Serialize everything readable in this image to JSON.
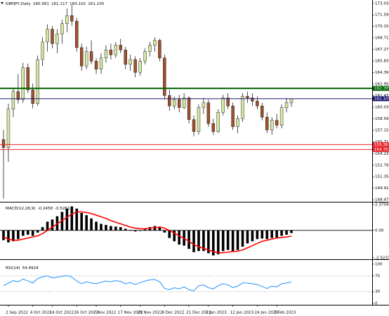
{
  "chart_data": [
    {
      "type": "candlestick",
      "symbol": "GBPJPY,Daily",
      "up_color": "#d3e6a3",
      "down_color": "#a0522d",
      "categories": [
        null,
        "2 Sep 2022",
        null,
        null,
        null,
        null,
        "4 Oct 2022",
        null,
        null,
        null,
        "14 Oct 2022",
        null,
        null,
        null,
        null,
        "26 Oct 2022",
        null,
        null,
        null,
        "7 Nov 2022",
        null,
        null,
        null,
        null,
        "17 Nov 2022",
        null,
        null,
        null,
        "29 Nov 2022",
        null,
        null,
        null,
        null,
        "9 Dec 2022",
        null,
        null,
        null,
        null,
        "21 Dec 2022",
        null,
        null,
        null,
        "2 Jan 2023",
        null,
        null,
        null,
        null,
        "12 Jan 2023",
        null,
        null,
        null,
        null,
        "24 Jan 2023",
        null,
        null,
        null,
        "3 Feb 2023",
        null,
        null,
        null
      ],
      "open": [
        156.0,
        155.0,
        159.8,
        162.0,
        161.0,
        165.0,
        162.2,
        160.5,
        166.0,
        168.2,
        169.8,
        168.0,
        169.2,
        170.5,
        171.5,
        170.8,
        167.5,
        165.2,
        167.0,
        165.8,
        164.8,
        166.2,
        167.2,
        166.6,
        167.8,
        167.2,
        165.4,
        166.0,
        164.4,
        165.8,
        167.0,
        167.8,
        168.4,
        166.2,
        161.5,
        160.2,
        161.0,
        160.0,
        161.2,
        158.5,
        157.0,
        160.0,
        160.6,
        158.0,
        157.0,
        159.4,
        161.2,
        160.2,
        157.6,
        158.6,
        161.4,
        161.2,
        160.8,
        160.2,
        158.8,
        157.2,
        158.4,
        157.8,
        160.0,
        160.581
      ],
      "high": [
        157.2,
        160.5,
        162.5,
        164.2,
        165.6,
        165.5,
        163.0,
        166.5,
        168.8,
        170.4,
        170.2,
        169.8,
        171.0,
        172.4,
        172.8,
        171.2,
        168.0,
        167.6,
        168.4,
        166.2,
        166.8,
        167.8,
        168.0,
        168.2,
        168.6,
        167.6,
        166.6,
        166.4,
        166.2,
        167.4,
        168.2,
        168.8,
        168.6,
        166.6,
        162.2,
        161.4,
        161.6,
        161.8,
        161.4,
        159.0,
        160.4,
        161.2,
        161.0,
        158.6,
        159.8,
        161.6,
        161.8,
        160.6,
        159.0,
        161.8,
        162.0,
        161.8,
        161.4,
        160.6,
        159.4,
        158.8,
        159.2,
        160.4,
        161.2,
        161.117
      ],
      "low": [
        148.6,
        153.2,
        158.8,
        160.5,
        160.6,
        161.8,
        159.9,
        160.2,
        165.2,
        167.0,
        167.4,
        166.8,
        168.0,
        169.4,
        170.2,
        167.0,
        164.6,
        164.8,
        165.4,
        164.2,
        164.2,
        165.6,
        166.0,
        166.2,
        166.8,
        164.8,
        164.6,
        163.8,
        164.0,
        165.4,
        166.4,
        167.0,
        165.8,
        161.0,
        159.6,
        159.8,
        159.4,
        159.8,
        158.0,
        156.4,
        156.6,
        159.2,
        157.6,
        156.6,
        156.8,
        159.0,
        159.8,
        157.2,
        156.8,
        158.2,
        160.6,
        160.2,
        159.8,
        158.4,
        156.8,
        156.6,
        157.4,
        157.4,
        159.4,
        160.102
      ],
      "close": [
        155.0,
        159.8,
        162.0,
        161.0,
        165.0,
        162.2,
        160.5,
        166.0,
        168.2,
        169.8,
        168.0,
        169.2,
        170.5,
        171.5,
        170.8,
        167.5,
        165.2,
        167.0,
        165.8,
        164.8,
        166.2,
        167.2,
        166.6,
        167.8,
        167.2,
        165.4,
        166.0,
        164.4,
        165.8,
        167.0,
        167.8,
        168.4,
        166.2,
        161.5,
        160.2,
        161.0,
        160.0,
        161.2,
        158.5,
        157.0,
        160.0,
        160.6,
        158.0,
        157.0,
        159.4,
        161.2,
        160.2,
        157.6,
        158.6,
        161.4,
        161.2,
        160.8,
        160.2,
        158.8,
        157.2,
        158.4,
        157.8,
        160.0,
        160.6,
        161.105
      ],
      "ylim": [
        148.3,
        173.45
      ],
      "yticks": [
        {
          "value": 173.03,
          "label": "173.030"
        },
        {
          "value": 171.59,
          "label": "171.590"
        },
        {
          "value": 170.15,
          "label": "170.150"
        },
        {
          "value": 168.71,
          "label": "168.710"
        },
        {
          "value": 167.27,
          "label": "167.270"
        },
        {
          "value": 165.83,
          "label": "165.830"
        },
        {
          "value": 164.39,
          "label": "164.390"
        },
        {
          "value": 162.95,
          "label": "162.950"
        },
        {
          "value": 161.47,
          "label": "161.470"
        },
        {
          "value": 160.03,
          "label": "160.030"
        },
        {
          "value": 158.59,
          "label": "158.590"
        },
        {
          "value": 157.15,
          "label": "157.150"
        },
        {
          "value": 155.71,
          "label": "155.710"
        },
        {
          "value": 154.23,
          "label": "154.230"
        },
        {
          "value": 152.79,
          "label": "152.790"
        },
        {
          "value": 151.35,
          "label": "151.350"
        },
        {
          "value": 149.91,
          "label": "149.910"
        },
        {
          "value": 148.47,
          "label": "148.470"
        }
      ],
      "levels": [
        {
          "value": 162.395,
          "color": "#006400"
        },
        {
          "value": 161.105,
          "color": "#191970"
        },
        {
          "value": 155.367,
          "color": "#e8262b"
        },
        {
          "value": 154.752,
          "color": "#e8262b"
        }
      ]
    },
    {
      "type": "macd",
      "series": [
        {
          "name": "MACD(12,26,9)",
          "color": "#000000",
          "values": [
            -0.9,
            -1.1,
            -1.0,
            -0.8,
            -0.5,
            -0.4,
            -0.5,
            -0.2,
            0.3,
            0.8,
            1.0,
            1.3,
            1.7,
            2.0,
            2.2,
            2.0,
            1.6,
            1.4,
            1.1,
            0.8,
            0.6,
            0.5,
            0.4,
            0.35,
            0.3,
            0.15,
            0.05,
            -0.1,
            -0.05,
            0.1,
            0.3,
            0.4,
            0.35,
            -0.2,
            -0.7,
            -1.0,
            -1.3,
            -1.4,
            -1.7,
            -2.0,
            -1.9,
            -1.9,
            -2.1,
            -2.3,
            -2.2,
            -1.9,
            -1.8,
            -1.9,
            -1.8,
            -1.5,
            -1.2,
            -1.0,
            -0.8,
            -0.75,
            -0.8,
            -0.7,
            -0.65,
            -0.5,
            -0.4,
            -0.2458
          ]
        },
        {
          "color": "#ff0000",
          "values": [
            -0.6,
            -0.8,
            -0.9,
            -0.9,
            -0.8,
            -0.7,
            -0.6,
            -0.5,
            -0.3,
            0.0,
            0.3,
            0.6,
            0.9,
            1.2,
            1.5,
            1.7,
            1.7,
            1.65,
            1.55,
            1.4,
            1.25,
            1.1,
            0.9,
            0.75,
            0.6,
            0.45,
            0.3,
            0.2,
            0.15,
            0.15,
            0.2,
            0.25,
            0.3,
            0.2,
            0.0,
            -0.25,
            -0.5,
            -0.75,
            -1.0,
            -1.3,
            -1.5,
            -1.65,
            -1.8,
            -1.95,
            -2.05,
            -2.05,
            -2.0,
            -1.95,
            -1.9,
            -1.8,
            -1.6,
            -1.4,
            -1.2,
            -1.0,
            -0.9,
            -0.8,
            -0.7,
            -0.65,
            -0.6,
            -0.5261
          ]
        }
      ],
      "ylim": [
        -2.5237,
        2.3704
      ],
      "yticks": [
        2.3704,
        {
          "value": 0,
          "label": "0.00"
        },
        -2.5237
      ],
      "zero_line": true
    },
    {
      "type": "line",
      "series": [
        {
          "name": "RSI(14)",
          "color": "#1e90ff",
          "values": [
            45,
            52,
            58,
            55,
            62,
            57,
            52,
            63,
            68,
            70,
            65,
            67,
            69,
            71,
            67,
            57,
            50,
            55,
            52,
            50,
            54,
            57,
            55,
            58,
            56,
            50,
            53,
            48,
            53,
            57,
            60,
            61,
            55,
            38,
            35,
            40,
            37,
            42,
            35,
            32,
            45,
            47,
            40,
            37,
            45,
            50,
            47,
            40,
            44,
            52,
            52,
            50,
            48,
            43,
            38,
            44,
            42,
            50,
            52,
            54.4924
          ]
        }
      ],
      "ylim": [
        0,
        100
      ],
      "yticks": [
        100,
        70,
        30,
        0
      ],
      "dashed_inner_ticks": true
    }
  ]
}
